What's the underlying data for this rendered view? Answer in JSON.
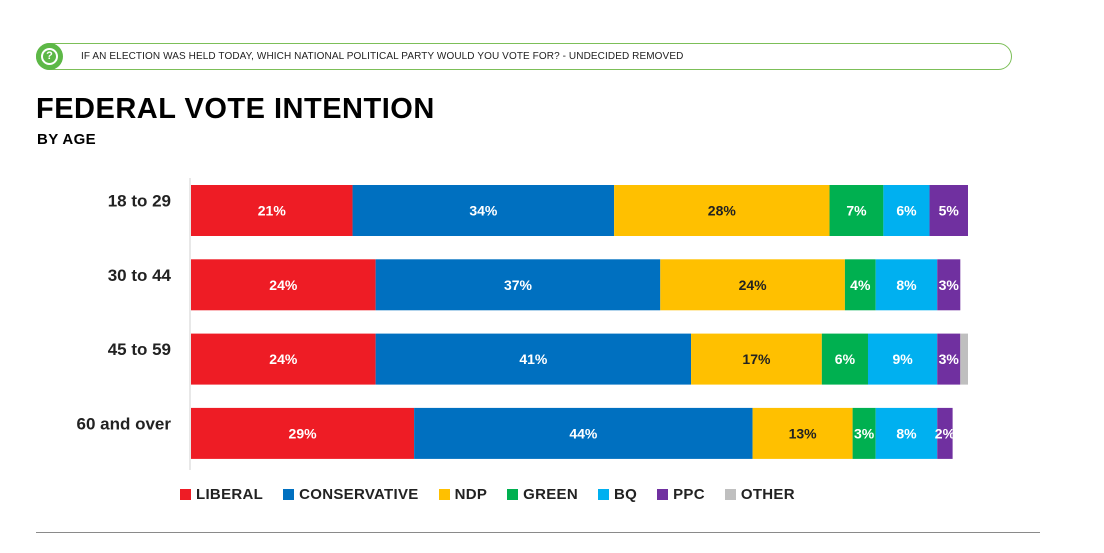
{
  "header": {
    "question": "IF AN ELECTION WAS HELD TODAY, WHICH NATIONAL POLITICAL PARTY WOULD YOU VOTE FOR? - UNDECIDED REMOVED",
    "icon": "question-circle-icon"
  },
  "chart_data": {
    "type": "bar",
    "orientation": "horizontal",
    "stacked": true,
    "title": "FEDERAL VOTE INTENTION",
    "subtitle": "BY AGE",
    "categories": [
      "18 to 29",
      "30 to 44",
      "45 to 59",
      "60 and over"
    ],
    "series": [
      {
        "name": "LIBERAL",
        "color": "#ee1c25",
        "values": [
          21,
          24,
          24,
          29
        ]
      },
      {
        "name": "CONSERVATIVE",
        "color": "#0070c0",
        "values": [
          34,
          37,
          41,
          44
        ]
      },
      {
        "name": "NDP",
        "color": "#ffc000",
        "values": [
          28,
          24,
          17,
          13
        ]
      },
      {
        "name": "GREEN",
        "color": "#00b050",
        "values": [
          7,
          4,
          6,
          3
        ]
      },
      {
        "name": "BQ",
        "color": "#00b0f0",
        "values": [
          6,
          8,
          9,
          8
        ]
      },
      {
        "name": "PPC",
        "color": "#7030a0",
        "values": [
          5,
          3,
          3,
          2
        ]
      },
      {
        "name": "OTHER",
        "color": "#bfbfbf",
        "values": [
          0,
          0,
          1,
          0
        ]
      }
    ],
    "value_labels": [
      [
        "21%",
        "34%",
        "28%",
        "7%",
        "6%",
        "5%",
        ""
      ],
      [
        "24%",
        "37%",
        "24%",
        "4%",
        "8%",
        "3%",
        ""
      ],
      [
        "24%",
        "41%",
        "17%",
        "6%",
        "9%",
        "3%",
        ""
      ],
      [
        "29%",
        "44%",
        "13%",
        "3%",
        "8%",
        "2%",
        ""
      ]
    ],
    "label_colors": [
      "#ffffff",
      "#ffffff",
      "#222222",
      "#ffffff",
      "#ffffff",
      "#ffffff",
      "#222222"
    ],
    "xlim": [
      0,
      101
    ],
    "grid": false,
    "legend_position": "bottom"
  }
}
